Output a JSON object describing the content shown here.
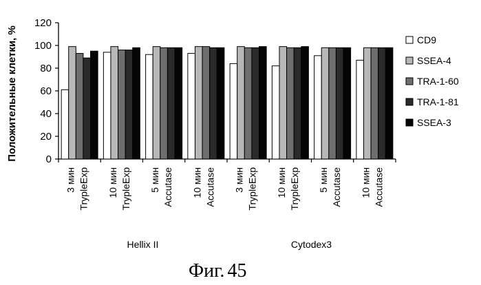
{
  "chart_data": {
    "type": "bar",
    "ylabel": "Положительные клетки, %",
    "ylim": [
      0,
      120
    ],
    "yticks": [
      0,
      20,
      40,
      60,
      80,
      100,
      120
    ],
    "grid": false,
    "legend_position": "right",
    "categories": [
      [
        "3 мин",
        "TrypleExp"
      ],
      [
        "10 мин",
        "TrypleExp"
      ],
      [
        "5 мин",
        "Accutase"
      ],
      [
        "10 мин",
        "Accutase"
      ],
      [
        "3 мин",
        "TrypleExp"
      ],
      [
        "10 мин",
        "TrypleExp"
      ],
      [
        "5 мин",
        "Accutase"
      ],
      [
        "10 мин",
        "Accutase"
      ]
    ],
    "groups": [
      {
        "label": "Hellix II",
        "span": [
          0,
          3
        ]
      },
      {
        "label": "Cytodex3",
        "span": [
          4,
          7
        ]
      }
    ],
    "series": [
      {
        "name": "CD9",
        "color": "#ffffff",
        "values": [
          61,
          94,
          92,
          93,
          84,
          82,
          91,
          87
        ]
      },
      {
        "name": "SSEA-4",
        "color": "#b8b8b8",
        "values": [
          99,
          99,
          99,
          99,
          99,
          99,
          98,
          98
        ]
      },
      {
        "name": "TRA-1-60",
        "color": "#6e6e6e",
        "values": [
          93,
          96,
          98,
          99,
          98,
          98,
          98,
          98
        ]
      },
      {
        "name": "TRA-1-81",
        "color": "#2a2a2a",
        "values": [
          89,
          96,
          98,
          98,
          98,
          98,
          98,
          98
        ]
      },
      {
        "name": "SSEA-3",
        "color": "#050505",
        "values": [
          95,
          98,
          98,
          98,
          99,
          99,
          98,
          98
        ]
      }
    ]
  },
  "caption": {
    "text": "Фиг.",
    "number": "45"
  }
}
